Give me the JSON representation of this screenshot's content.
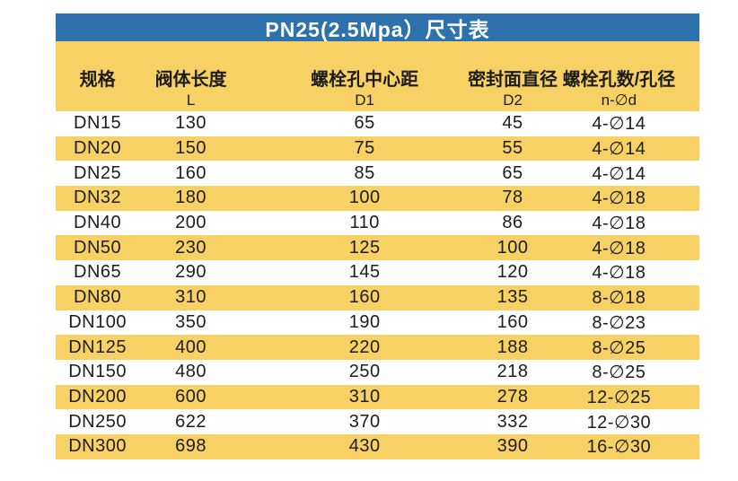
{
  "title": "PN25(2.5Mpa）尺寸表",
  "colors": {
    "title_bar_blue": "#2e72ad",
    "title_text": "#ffffff",
    "stripe_yellow": "#f8d164",
    "stripe_white": "#ffffff",
    "body_text": "#1d1d1d"
  },
  "table": {
    "columns": [
      {
        "label": "规格",
        "sub": ""
      },
      {
        "label": "阀体长度",
        "sub": "L"
      },
      {
        "label": "螺栓孔中心距",
        "sub": "D1"
      },
      {
        "label": "密封面直径",
        "sub": "D2"
      },
      {
        "label": "螺栓孔数/孔径",
        "sub": "n-∅d"
      }
    ],
    "rows": [
      [
        "DN15",
        "130",
        "65",
        "45",
        "4-∅14"
      ],
      [
        "DN20",
        "150",
        "75",
        "55",
        "4-∅14"
      ],
      [
        "DN25",
        "160",
        "85",
        "65",
        "4-∅14"
      ],
      [
        "DN32",
        "180",
        "100",
        "78",
        "4-∅18"
      ],
      [
        "DN40",
        "200",
        "110",
        "86",
        "4-∅18"
      ],
      [
        "DN50",
        "230",
        "125",
        "100",
        "4-∅18"
      ],
      [
        "DN65",
        "290",
        "145",
        "120",
        "4-∅18"
      ],
      [
        "DN80",
        "310",
        "160",
        "135",
        "8-∅18"
      ],
      [
        "DN100",
        "350",
        "190",
        "160",
        "8-∅23"
      ],
      [
        "DN125",
        "400",
        "220",
        "188",
        "8-∅25"
      ],
      [
        "DN150",
        "480",
        "250",
        "218",
        "8-∅25"
      ],
      [
        "DN200",
        "600",
        "310",
        "278",
        "12-∅25"
      ],
      [
        "DN250",
        "622",
        "370",
        "332",
        "12-∅30"
      ],
      [
        "DN300",
        "698",
        "430",
        "390",
        "16-∅30"
      ]
    ]
  }
}
